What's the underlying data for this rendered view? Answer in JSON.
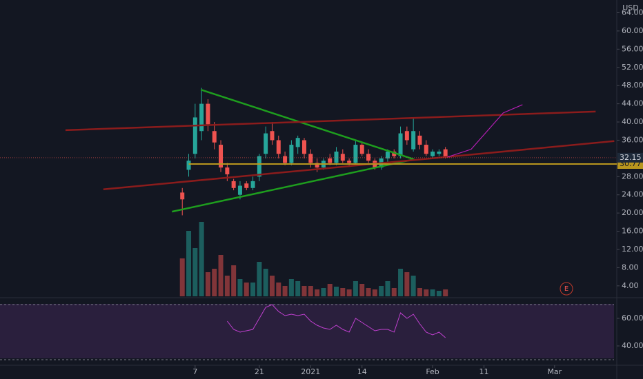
{
  "chart_data": {
    "type": "candlestick",
    "currency": "USD",
    "x": [
      0,
      1,
      2,
      3,
      4,
      5,
      6,
      7,
      8,
      9,
      10,
      11,
      12,
      13,
      14,
      15,
      16,
      17,
      18,
      19,
      20,
      21,
      22,
      23,
      24,
      25,
      26,
      27,
      28,
      29,
      30,
      31,
      32,
      33,
      34,
      35,
      36,
      37,
      38,
      39,
      40,
      41
    ],
    "open": [
      24.5,
      29.5,
      33,
      38,
      44,
      38,
      35,
      30,
      27,
      24,
      26.5,
      25.5,
      28,
      33,
      38,
      36,
      32.5,
      31,
      34.5,
      36,
      33,
      31,
      30,
      32,
      31,
      33,
      31.5,
      31,
      35,
      33,
      31.5,
      30,
      32,
      33.5,
      32.5,
      38,
      34,
      37,
      35,
      32.5,
      33,
      34
    ],
    "high": [
      25.5,
      33,
      44,
      47.5,
      45,
      40,
      36,
      31,
      27.5,
      27,
      27,
      28,
      33,
      39,
      40,
      37,
      33.5,
      36,
      37,
      36.5,
      34,
      32,
      32,
      33,
      34.5,
      34,
      32,
      36,
      35.5,
      34,
      32,
      32.5,
      34,
      34,
      39,
      39,
      41,
      38,
      36,
      34,
      34,
      34.5
    ],
    "low": [
      19.5,
      28,
      32,
      36,
      38,
      34,
      29,
      27,
      25,
      23,
      25,
      25,
      27,
      32,
      35,
      32,
      30.5,
      30.5,
      33,
      32,
      30,
      29,
      29.5,
      30.5,
      30.5,
      31,
      30.5,
      30.5,
      32.5,
      31,
      29.5,
      29.5,
      31,
      32,
      32,
      35,
      33.5,
      34,
      32.5,
      32,
      32.5,
      32
    ],
    "close": [
      23,
      31.5,
      41,
      44,
      39.5,
      35.5,
      30,
      28.5,
      25.5,
      26,
      25.5,
      27,
      32.5,
      37.5,
      36,
      33,
      31,
      35,
      36.5,
      33,
      31,
      30,
      31.5,
      31,
      33.5,
      31.5,
      31,
      35,
      33,
      31.5,
      30,
      32,
      33.5,
      32.5,
      37.5,
      36,
      38,
      35,
      33,
      33.5,
      33.5,
      32.15
    ],
    "volume": [
      55,
      95,
      70,
      108,
      35,
      40,
      60,
      30,
      45,
      25,
      20,
      20,
      50,
      40,
      30,
      20,
      15,
      25,
      22,
      15,
      15,
      10,
      12,
      18,
      14,
      12,
      10,
      22,
      18,
      12,
      10,
      15,
      22,
      12,
      40,
      35,
      30,
      12,
      10,
      10,
      8,
      10
    ],
    "xlim": [
      -28.4,
      67.8
    ],
    "xticks": [
      {
        "value": 2,
        "label": "7"
      },
      {
        "value": 12,
        "label": "21"
      },
      {
        "value": 20,
        "label": "2021"
      },
      {
        "value": 28,
        "label": "14"
      },
      {
        "value": 39,
        "label": "Feb"
      },
      {
        "value": 47,
        "label": "11"
      },
      {
        "value": 58,
        "label": "Mar"
      }
    ],
    "ylim": [
      1.4,
      66.8
    ],
    "yticks": [
      {
        "value": 4,
        "label": "4.00"
      },
      {
        "value": 8,
        "label": "8.00"
      },
      {
        "value": 12,
        "label": "12.00"
      },
      {
        "value": 16,
        "label": "16.00"
      },
      {
        "value": 20,
        "label": "20.00"
      },
      {
        "value": 24,
        "label": "24.00"
      },
      {
        "value": 28,
        "label": "28.00"
      },
      {
        "value": 36,
        "label": "36.00"
      },
      {
        "value": 40,
        "label": "40.00"
      },
      {
        "value": 44,
        "label": "44.00"
      },
      {
        "value": 48,
        "label": "48.00"
      },
      {
        "value": 52,
        "label": "52.00"
      },
      {
        "value": 56,
        "label": "56.00"
      },
      {
        "value": 60,
        "label": "60.00"
      },
      {
        "value": 64,
        "label": "64.00"
      }
    ],
    "last_price": 32.15,
    "level": 30.77,
    "rsi": {
      "values": [
        null,
        null,
        null,
        null,
        null,
        null,
        null,
        58,
        52,
        50,
        51,
        52,
        60,
        68,
        70,
        65,
        62,
        63,
        62,
        63,
        58,
        55,
        53,
        52,
        55,
        52,
        50,
        60,
        57,
        54,
        51,
        52,
        52,
        50,
        64,
        60,
        63,
        56,
        50,
        48,
        50,
        46
      ],
      "ylim": [
        26,
        75
      ],
      "yticks": [
        {
          "value": 40,
          "label": "40.00"
        },
        {
          "value": 60,
          "label": "60.00"
        }
      ],
      "bands": [
        30,
        70
      ]
    },
    "drawings": [
      {
        "color": "#1e9e1e",
        "points": [
          [
            2.9,
            47.1
          ],
          [
            36.1,
            31.8
          ]
        ]
      },
      {
        "color": "#1e9e1e",
        "points": [
          [
            -1.6,
            20.3
          ],
          [
            36.1,
            31.8
          ]
        ]
      },
      {
        "color": "#8b1c1c",
        "points": [
          [
            -18.2,
            38.2
          ],
          [
            64.4,
            42.3
          ]
        ]
      },
      {
        "color": "#8b1c1c",
        "points": [
          [
            -12.3,
            25.2
          ],
          [
            67.3,
            35.8
          ]
        ]
      },
      {
        "color": "#b41eb4",
        "points": [
          [
            41.3,
            32.3
          ],
          [
            45,
            34
          ],
          [
            47.5,
            38
          ],
          [
            50,
            42
          ],
          [
            53,
            43.8
          ]
        ]
      }
    ],
    "earnings_marker": "E"
  }
}
